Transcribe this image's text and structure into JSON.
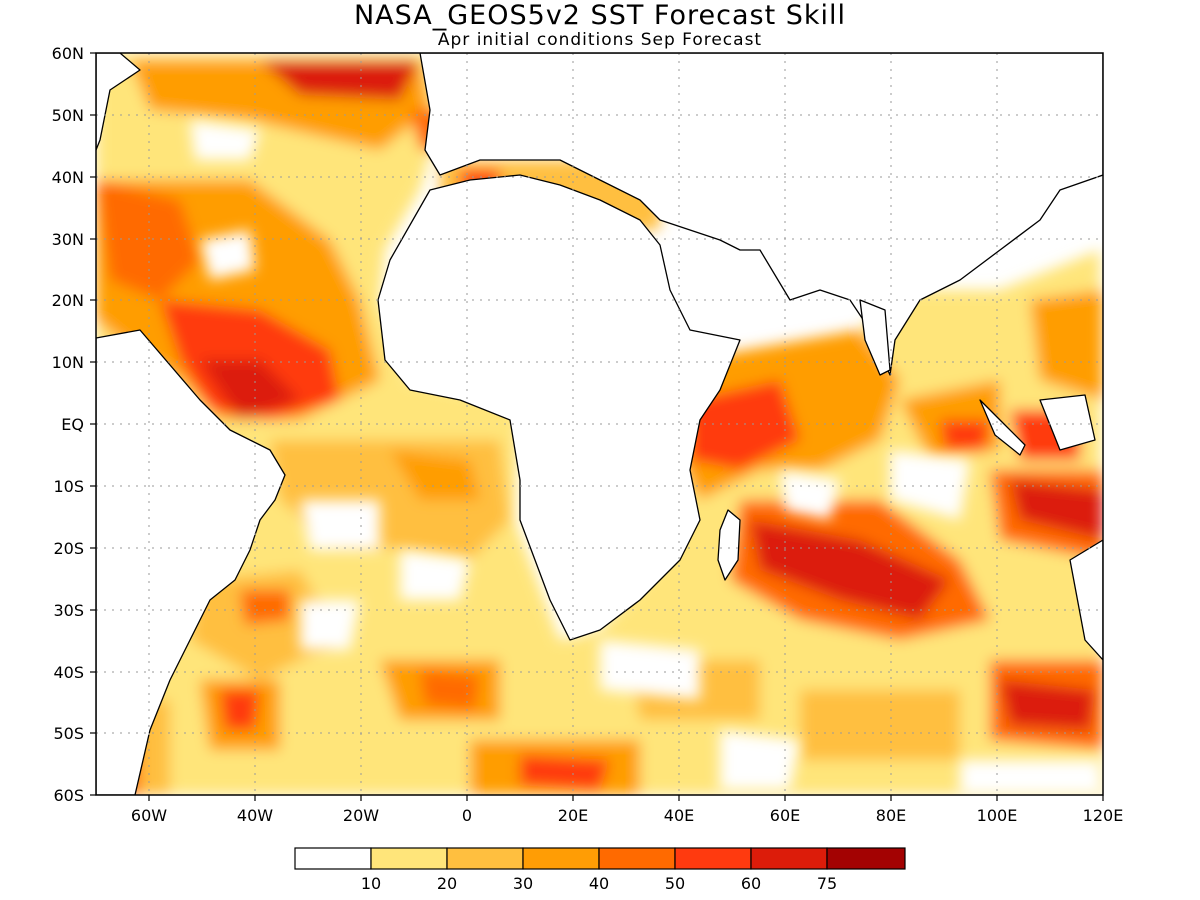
{
  "header": {
    "title": "NASA_GEOS5v2 SST Forecast Skill",
    "subtitle": "Apr initial conditions  Sep Forecast"
  },
  "map": {
    "lon_range": [
      -70,
      120
    ],
    "lat_range": [
      -60,
      60
    ],
    "lat_ticks": [
      "60N",
      "50N",
      "40N",
      "30N",
      "20N",
      "10N",
      "EQ",
      "10S",
      "20S",
      "30S",
      "40S",
      "50S",
      "60S"
    ],
    "lon_ticks": [
      "60W",
      "40W",
      "20W",
      "0",
      "20E",
      "40E",
      "60E",
      "80E",
      "100E",
      "120E"
    ],
    "gridlines": "dotted"
  },
  "legend": {
    "colors": [
      "#ffffff",
      "#ffe57a",
      "#ffbf3f",
      "#ff9d05",
      "#ff6a00",
      "#ff3a0f",
      "#dc1c0a",
      "#a30202"
    ],
    "labels": [
      "10",
      "20",
      "30",
      "40",
      "50",
      "60",
      "75"
    ]
  },
  "colors": {
    "coast": "#000000",
    "frame": "#000000",
    "grid": "#9a9a9a"
  }
}
